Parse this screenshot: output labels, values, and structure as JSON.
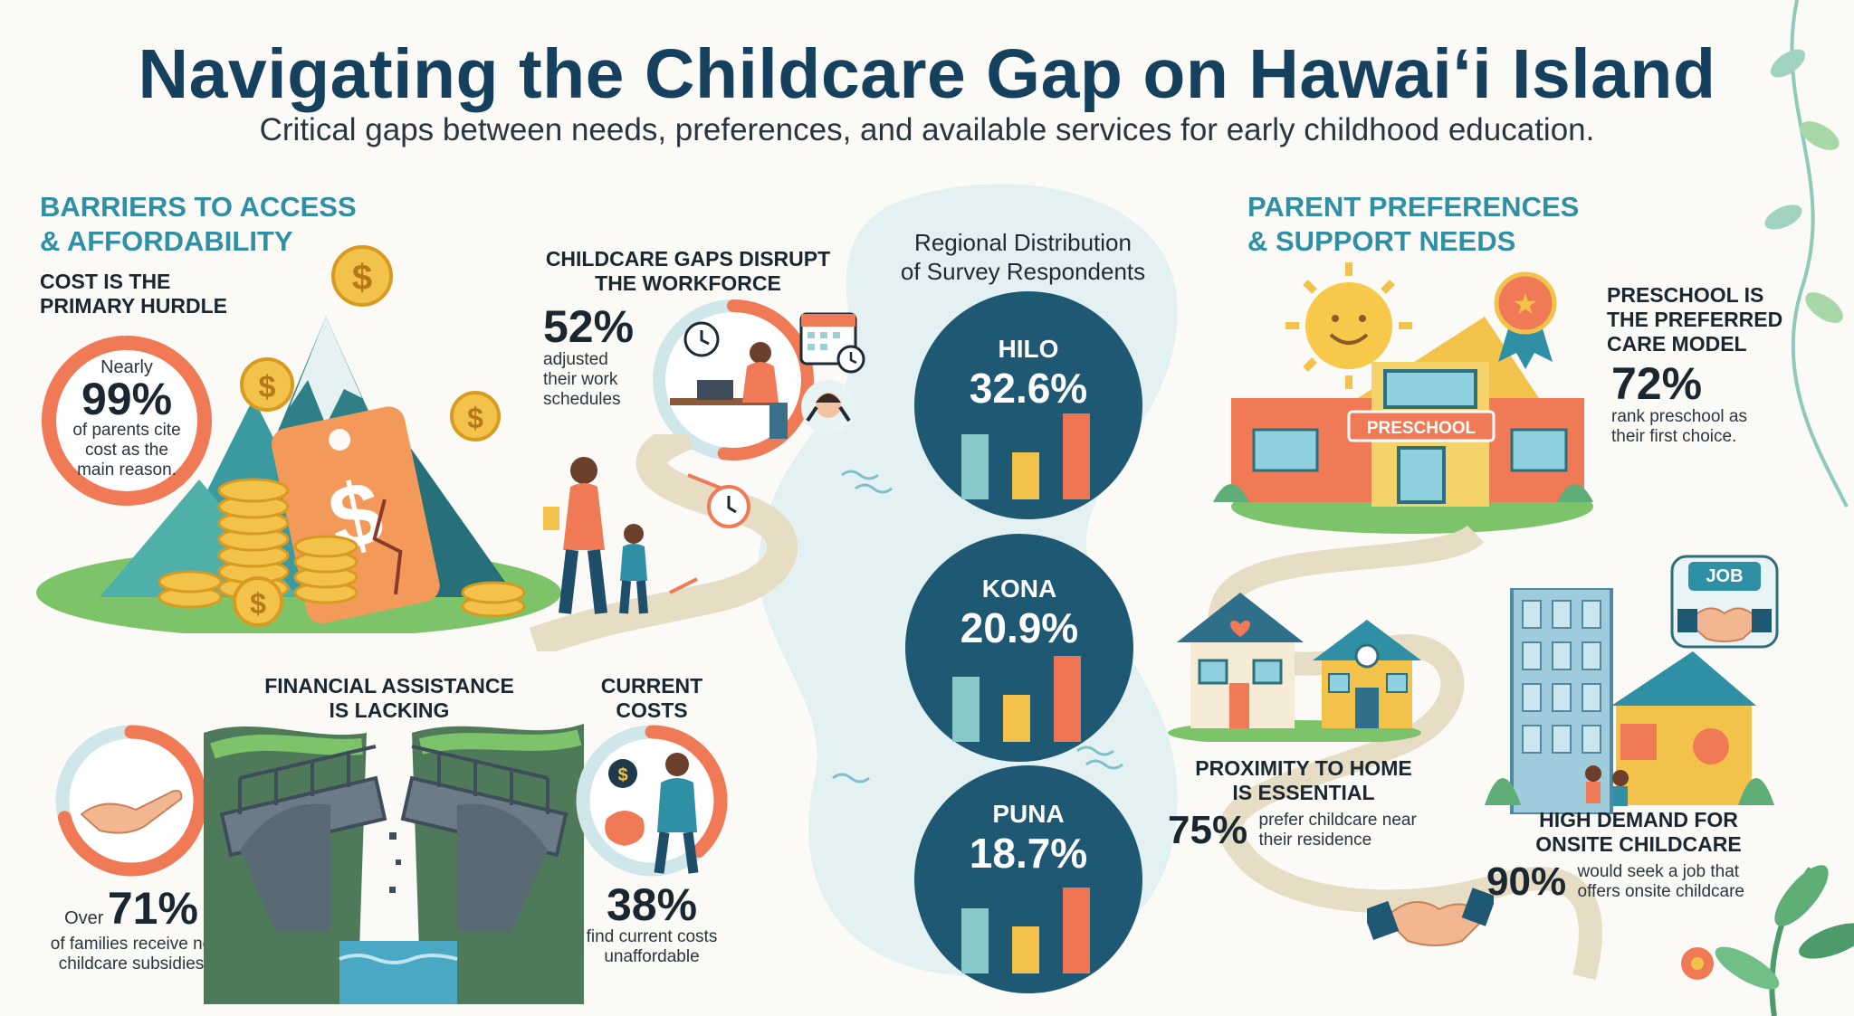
{
  "title": "Navigating the Childcare Gap on Hawaiʻi Island",
  "subtitle": "Critical gaps between needs, preferences, and available services for early childhood education.",
  "barriers": {
    "heading_line1": "BARRIERS TO ACCESS",
    "heading_line2": "& AFFORDABILITY",
    "cost": {
      "heading_line1": "COST IS THE",
      "heading_line2": "PRIMARY HURDLE",
      "pre": "Nearly",
      "value": "99%",
      "fraction": 0.99,
      "desc_line1": "of parents cite",
      "desc_line2": "cost as the",
      "desc_line3": "main reason."
    },
    "workforce": {
      "heading_line1": "CHILDCARE GAPS DISRUPT",
      "heading_line2": "THE WORKFORCE",
      "value": "52%",
      "fraction": 0.52,
      "desc_line1": "adjusted",
      "desc_line2": "their work",
      "desc_line3": "schedules"
    },
    "assistance": {
      "heading_line1": "FINANCIAL ASSISTANCE",
      "heading_line2": "IS LACKING",
      "pre": "Over",
      "value": "71%",
      "fraction": 0.71,
      "desc_line1": "of families receive no",
      "desc_line2": "childcare subsidies"
    },
    "current_costs": {
      "heading_line1": "CURRENT",
      "heading_line2": "COSTS",
      "value": "38%",
      "fraction": 0.38,
      "desc_line1": "find current costs",
      "desc_line2": "unaffordable"
    }
  },
  "regional": {
    "heading_line1": "Regional Distribution",
    "heading_line2": "of Survey Respondents",
    "regions": [
      {
        "name": "HILO",
        "value": "32.6%"
      },
      {
        "name": "KONA",
        "value": "20.9%"
      },
      {
        "name": "PUNA",
        "value": "18.7%"
      }
    ]
  },
  "preferences": {
    "heading_line1": "PARENT PREFERENCES",
    "heading_line2": "& SUPPORT NEEDS",
    "preschool": {
      "heading_line1": "PRESCHOOL IS",
      "heading_line2": "THE PREFERRED",
      "heading_line3": "CARE MODEL",
      "sign": "PRESCHOOL",
      "value": "72%",
      "desc_line1": "rank preschool as",
      "desc_line2": "their first choice."
    },
    "proximity": {
      "heading_line1": "PROXIMITY TO HOME",
      "heading_line2": "IS ESSENTIAL",
      "value": "75%",
      "desc_line1": "prefer childcare near",
      "desc_line2": "their residence"
    },
    "onsite": {
      "badge": "JOB",
      "heading_line1": "HIGH DEMAND FOR",
      "heading_line2": "ONSITE CHILDCARE",
      "value": "90%",
      "desc_line1": "would seek a job that",
      "desc_line2": "offers onsite childcare"
    }
  },
  "colors": {
    "navy": "#15405e",
    "teal": "#2f8fa5",
    "coral": "#ef7a55",
    "ring_teal": "#6fbcc6",
    "dark_circle": "#1f5873",
    "bar_teal": "#86c9c8",
    "bar_yellow": "#f3c24a",
    "bar_coral": "#ee7552"
  }
}
